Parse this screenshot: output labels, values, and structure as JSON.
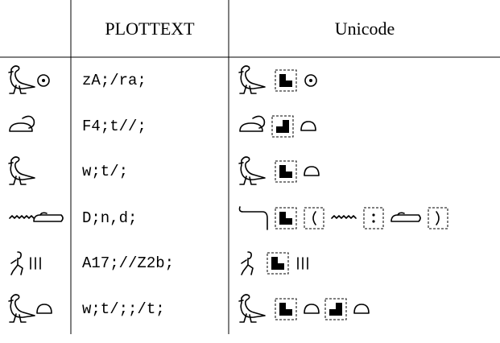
{
  "table": {
    "header": [
      "PLOTTEXT",
      "Unicode"
    ],
    "rows": [
      [
        "zA;/ra;"
      ],
      [
        "F4;t//;"
      ],
      [
        "w;t/;"
      ],
      [
        "D;n,d;"
      ],
      [
        "A17;//Z2b;"
      ],
      [
        "w;t/;;/t;"
      ]
    ]
  }
}
